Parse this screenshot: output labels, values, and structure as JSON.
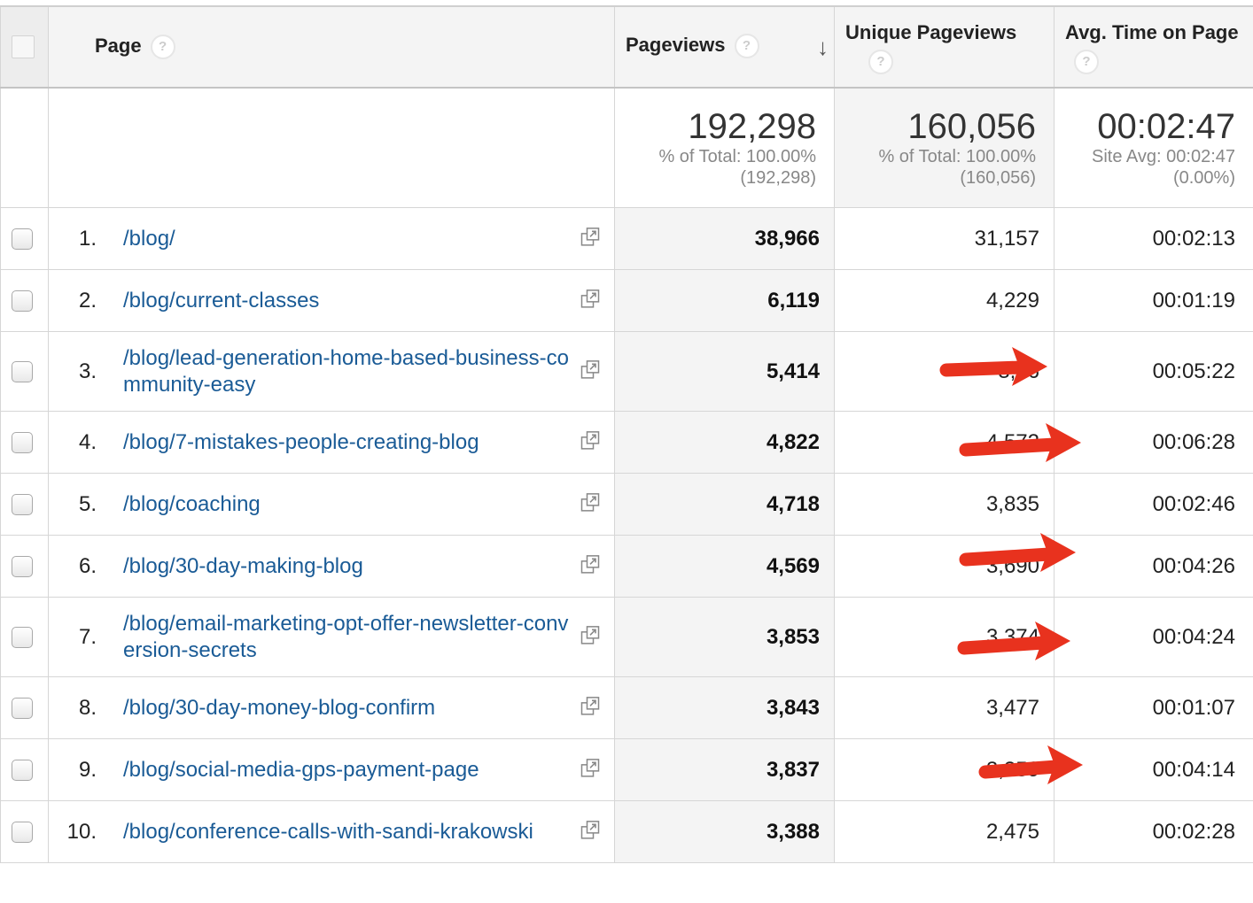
{
  "columns": {
    "page": "Page",
    "pageviews": "Pageviews",
    "unique_pageviews": "Unique Pageviews",
    "avg_time": "Avg. Time on Page",
    "help_glyph": "?",
    "sort_glyph": "↓"
  },
  "totals": {
    "pageviews": {
      "value": "192,298",
      "line1": "% of Total: 100.00%",
      "line2": "(192,298)"
    },
    "unique_pageviews": {
      "value": "160,056",
      "line1": "% of Total: 100.00%",
      "line2": "(160,056)"
    },
    "avg_time": {
      "value": "00:02:47",
      "line1": "Site Avg: 00:02:47",
      "line2": "(0.00%)"
    }
  },
  "rows": [
    {
      "rank": "1.",
      "page": "/blog/",
      "pageviews": "38,966",
      "unique": "31,157",
      "time": "00:02:13"
    },
    {
      "rank": "2.",
      "page": "/blog/current-classes",
      "pageviews": "6,119",
      "unique": "4,229",
      "time": "00:01:19"
    },
    {
      "rank": "3.",
      "page": "/blog/lead-generation-home-based-business-community-easy",
      "pageviews": "5,414",
      "unique": "3,66",
      "time": "00:05:22"
    },
    {
      "rank": "4.",
      "page": "/blog/7-mistakes-people-creating-blog",
      "pageviews": "4,822",
      "unique": "4,572",
      "time": "00:06:28"
    },
    {
      "rank": "5.",
      "page": "/blog/coaching",
      "pageviews": "4,718",
      "unique": "3,835",
      "time": "00:02:46"
    },
    {
      "rank": "6.",
      "page": "/blog/30-day-making-blog",
      "pageviews": "4,569",
      "unique": "3,690",
      "time": "00:04:26"
    },
    {
      "rank": "7.",
      "page": "/blog/email-marketing-opt-offer-newsletter-conversion-secrets",
      "pageviews": "3,853",
      "unique": "3,374",
      "time": "00:04:24"
    },
    {
      "rank": "8.",
      "page": "/blog/30-day-money-blog-confirm",
      "pageviews": "3,843",
      "unique": "3,477",
      "time": "00:01:07"
    },
    {
      "rank": "9.",
      "page": "/blog/social-media-gps-payment-page",
      "pageviews": "3,837",
      "unique": "3,359",
      "time": "00:04:14"
    },
    {
      "rank": "10.",
      "page": "/blog/conference-calls-with-sandi-krakowski",
      "pageviews": "3,388",
      "unique": "2,475",
      "time": "00:02:28"
    }
  ],
  "colors": {
    "link": "#1a5b96",
    "arrow": "#e8321e"
  },
  "icons": {
    "popout": "popout-icon",
    "arrow": "red-arrow-annotation"
  }
}
